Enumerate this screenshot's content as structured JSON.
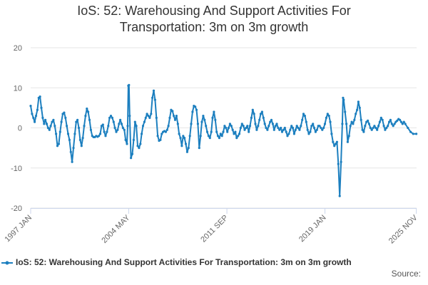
{
  "chart_data": {
    "type": "line",
    "title_line1": "IoS: 52: Warehousing And Support Activities For",
    "title_line2": "Transportation: 3m on 3m growth",
    "series_name": "IoS: 52: Warehousing And Support Activities For Transportation: 3m on 3m growth",
    "color": "#1c7fbf",
    "ylim": [
      -20,
      20
    ],
    "yticks": [
      20,
      10,
      0,
      -10,
      -20
    ],
    "xlim": [
      1997.0,
      2025.85
    ],
    "xticks": [
      {
        "label": "1997 JAN",
        "x": 1997.0
      },
      {
        "label": "2004 MAY",
        "x": 2004.33
      },
      {
        "label": "2011 SEP",
        "x": 2011.67
      },
      {
        "label": "2019 JAN",
        "x": 2019.0
      },
      {
        "label": "2025 NOV",
        "x": 2025.83
      }
    ],
    "grid": true,
    "legend_position": "bottom",
    "source_label": "Source:",
    "points": [
      [
        1997.0,
        5.5
      ],
      [
        1997.1,
        3.5
      ],
      [
        1997.2,
        2.5
      ],
      [
        1997.3,
        1.5
      ],
      [
        1997.4,
        3.0
      ],
      [
        1997.5,
        4.5
      ],
      [
        1997.6,
        7.5
      ],
      [
        1997.7,
        7.8
      ],
      [
        1997.8,
        5.0
      ],
      [
        1997.9,
        2.5
      ],
      [
        1998.0,
        1.0
      ],
      [
        1998.1,
        2.0
      ],
      [
        1998.2,
        1.0
      ],
      [
        1998.3,
        0.0
      ],
      [
        1998.4,
        -0.5
      ],
      [
        1998.5,
        0.5
      ],
      [
        1998.6,
        1.5
      ],
      [
        1998.7,
        2.0
      ],
      [
        1998.8,
        0.5
      ],
      [
        1998.9,
        -1.5
      ],
      [
        1999.0,
        -4.5
      ],
      [
        1999.1,
        -4.0
      ],
      [
        1999.2,
        -1.0
      ],
      [
        1999.3,
        1.5
      ],
      [
        1999.4,
        3.5
      ],
      [
        1999.5,
        3.8
      ],
      [
        1999.6,
        2.5
      ],
      [
        1999.7,
        0.5
      ],
      [
        1999.8,
        -1.5
      ],
      [
        1999.9,
        -3.0
      ],
      [
        2000.0,
        -6.0
      ],
      [
        2000.1,
        -8.5
      ],
      [
        2000.2,
        -5.0
      ],
      [
        2000.3,
        -1.5
      ],
      [
        2000.4,
        1.5
      ],
      [
        2000.5,
        2.0
      ],
      [
        2000.6,
        0.0
      ],
      [
        2000.7,
        -3.0
      ],
      [
        2000.8,
        -4.5
      ],
      [
        2000.9,
        -2.5
      ],
      [
        2001.0,
        0.5
      ],
      [
        2001.1,
        3.0
      ],
      [
        2001.2,
        4.8
      ],
      [
        2001.3,
        4.0
      ],
      [
        2001.4,
        2.0
      ],
      [
        2001.5,
        -0.5
      ],
      [
        2001.6,
        -2.0
      ],
      [
        2001.7,
        -2.3
      ],
      [
        2001.8,
        -2.3
      ],
      [
        2001.9,
        -2.0
      ],
      [
        2002.0,
        -2.2
      ],
      [
        2002.1,
        -2.0
      ],
      [
        2002.2,
        -1.5
      ],
      [
        2002.3,
        0.5
      ],
      [
        2002.4,
        0.8
      ],
      [
        2002.5,
        -1.0
      ],
      [
        2002.6,
        -2.0
      ],
      [
        2002.7,
        -1.0
      ],
      [
        2002.8,
        0.5
      ],
      [
        2002.9,
        2.5
      ],
      [
        2003.0,
        3.0
      ],
      [
        2003.1,
        2.5
      ],
      [
        2003.2,
        1.5
      ],
      [
        2003.3,
        0.0
      ],
      [
        2003.4,
        -1.0
      ],
      [
        2003.5,
        -0.5
      ],
      [
        2003.6,
        1.0
      ],
      [
        2003.7,
        2.0
      ],
      [
        2003.8,
        1.0
      ],
      [
        2003.9,
        0.0
      ],
      [
        2004.0,
        -0.5
      ],
      [
        2004.1,
        -3.0
      ],
      [
        2004.2,
        -4.0
      ],
      [
        2004.25,
        0.5
      ],
      [
        2004.3,
        10.5
      ],
      [
        2004.35,
        10.7
      ],
      [
        2004.4,
        3.0
      ],
      [
        2004.5,
        -7.5
      ],
      [
        2004.6,
        -6.5
      ],
      [
        2004.7,
        -3.0
      ],
      [
        2004.8,
        1.5
      ],
      [
        2004.9,
        0.5
      ],
      [
        2005.0,
        -4.5
      ],
      [
        2005.1,
        -5.0
      ],
      [
        2005.2,
        -4.0
      ],
      [
        2005.3,
        -1.5
      ],
      [
        2005.4,
        0.5
      ],
      [
        2005.5,
        1.5
      ],
      [
        2005.6,
        2.5
      ],
      [
        2005.7,
        3.5
      ],
      [
        2005.8,
        3.0
      ],
      [
        2005.9,
        2.5
      ],
      [
        2006.0,
        3.5
      ],
      [
        2006.1,
        7.5
      ],
      [
        2006.2,
        9.3
      ],
      [
        2006.3,
        7.0
      ],
      [
        2006.4,
        2.5
      ],
      [
        2006.5,
        -2.0
      ],
      [
        2006.6,
        -3.2
      ],
      [
        2006.7,
        -3.0
      ],
      [
        2006.8,
        -1.5
      ],
      [
        2006.9,
        -1.0
      ],
      [
        2007.0,
        -0.8
      ],
      [
        2007.1,
        -1.0
      ],
      [
        2007.2,
        -0.5
      ],
      [
        2007.3,
        0.5
      ],
      [
        2007.4,
        2.5
      ],
      [
        2007.5,
        4.5
      ],
      [
        2007.6,
        4.2
      ],
      [
        2007.7,
        3.0
      ],
      [
        2007.8,
        2.0
      ],
      [
        2007.9,
        3.0
      ],
      [
        2008.0,
        1.0
      ],
      [
        2008.1,
        -1.5
      ],
      [
        2008.2,
        -2.5
      ],
      [
        2008.3,
        -4.5
      ],
      [
        2008.4,
        -2.0
      ],
      [
        2008.5,
        -2.5
      ],
      [
        2008.6,
        -4.0
      ],
      [
        2008.7,
        -6.0
      ],
      [
        2008.8,
        -5.0
      ],
      [
        2008.9,
        -2.0
      ],
      [
        2009.0,
        1.0
      ],
      [
        2009.1,
        4.0
      ],
      [
        2009.2,
        5.5
      ],
      [
        2009.3,
        5.3
      ],
      [
        2009.4,
        4.5
      ],
      [
        2009.5,
        1.0
      ],
      [
        2009.6,
        -5.0
      ],
      [
        2009.7,
        -2.0
      ],
      [
        2009.8,
        1.5
      ],
      [
        2009.9,
        3.0
      ],
      [
        2010.0,
        2.0
      ],
      [
        2010.1,
        0.5
      ],
      [
        2010.2,
        -1.0
      ],
      [
        2010.3,
        -2.0
      ],
      [
        2010.4,
        -2.5
      ],
      [
        2010.5,
        -1.0
      ],
      [
        2010.6,
        2.5
      ],
      [
        2010.7,
        4.0
      ],
      [
        2010.8,
        2.0
      ],
      [
        2010.9,
        -1.0
      ],
      [
        2011.0,
        -2.0
      ],
      [
        2011.1,
        -2.5
      ],
      [
        2011.2,
        -1.5
      ],
      [
        2011.3,
        -2.0
      ],
      [
        2011.4,
        -1.0
      ],
      [
        2011.5,
        0.5
      ],
      [
        2011.6,
        0.0
      ],
      [
        2011.7,
        -1.0
      ],
      [
        2011.8,
        0.0
      ],
      [
        2011.9,
        1.0
      ],
      [
        2012.0,
        0.5
      ],
      [
        2012.1,
        -0.5
      ],
      [
        2012.2,
        -1.5
      ],
      [
        2012.3,
        -1.0
      ],
      [
        2012.4,
        -2.5
      ],
      [
        2012.5,
        -2.0
      ],
      [
        2012.6,
        -1.5
      ],
      [
        2012.7,
        0.0
      ],
      [
        2012.8,
        1.0
      ],
      [
        2012.9,
        0.5
      ],
      [
        2013.0,
        -0.5
      ],
      [
        2013.1,
        0.0
      ],
      [
        2013.2,
        0.5
      ],
      [
        2013.3,
        -1.0
      ],
      [
        2013.4,
        0.5
      ],
      [
        2013.5,
        2.5
      ],
      [
        2013.6,
        4.5
      ],
      [
        2013.7,
        3.5
      ],
      [
        2013.8,
        1.0
      ],
      [
        2013.9,
        -0.5
      ],
      [
        2014.0,
        0.5
      ],
      [
        2014.1,
        2.0
      ],
      [
        2014.2,
        3.5
      ],
      [
        2014.3,
        4.0
      ],
      [
        2014.4,
        2.5
      ],
      [
        2014.5,
        1.0
      ],
      [
        2014.6,
        0.0
      ],
      [
        2014.7,
        -0.5
      ],
      [
        2014.8,
        0.5
      ],
      [
        2014.9,
        1.5
      ],
      [
        2015.0,
        2.0
      ],
      [
        2015.1,
        1.0
      ],
      [
        2015.2,
        -0.5
      ],
      [
        2015.3,
        0.5
      ],
      [
        2015.4,
        1.0
      ],
      [
        2015.5,
        0.0
      ],
      [
        2015.6,
        -0.5
      ],
      [
        2015.7,
        0.0
      ],
      [
        2015.8,
        -1.0
      ],
      [
        2015.9,
        -0.5
      ],
      [
        2016.0,
        0.0
      ],
      [
        2016.1,
        -1.0
      ],
      [
        2016.2,
        -2.0
      ],
      [
        2016.3,
        -1.5
      ],
      [
        2016.4,
        -0.5
      ],
      [
        2016.5,
        0.5
      ],
      [
        2016.6,
        0.0
      ],
      [
        2016.7,
        -1.5
      ],
      [
        2016.8,
        -0.5
      ],
      [
        2016.9,
        0.5
      ],
      [
        2017.0,
        0.0
      ],
      [
        2017.1,
        -0.5
      ],
      [
        2017.2,
        0.5
      ],
      [
        2017.3,
        2.0
      ],
      [
        2017.4,
        3.5
      ],
      [
        2017.5,
        3.0
      ],
      [
        2017.6,
        1.5
      ],
      [
        2017.7,
        -0.5
      ],
      [
        2017.8,
        -1.5
      ],
      [
        2017.9,
        -1.0
      ],
      [
        2018.0,
        0.5
      ],
      [
        2018.1,
        1.0
      ],
      [
        2018.2,
        0.0
      ],
      [
        2018.3,
        -1.0
      ],
      [
        2018.4,
        -0.5
      ],
      [
        2018.5,
        0.5
      ],
      [
        2018.6,
        0.5
      ],
      [
        2018.7,
        0.0
      ],
      [
        2018.8,
        -0.5
      ],
      [
        2018.9,
        0.0
      ],
      [
        2019.0,
        1.0
      ],
      [
        2019.1,
        2.5
      ],
      [
        2019.2,
        3.5
      ],
      [
        2019.3,
        3.0
      ],
      [
        2019.4,
        1.5
      ],
      [
        2019.5,
        -1.5
      ],
      [
        2019.6,
        -3.5
      ],
      [
        2019.7,
        -4.5
      ],
      [
        2019.8,
        -4.0
      ],
      [
        2019.9,
        -3.5
      ],
      [
        2020.0,
        -9.0
      ],
      [
        2020.1,
        -17.0
      ],
      [
        2020.2,
        -8.5
      ],
      [
        2020.3,
        1.0
      ],
      [
        2020.35,
        7.5
      ],
      [
        2020.4,
        7.0
      ],
      [
        2020.5,
        4.0
      ],
      [
        2020.6,
        1.0
      ],
      [
        2020.7,
        -3.5
      ],
      [
        2020.8,
        -2.0
      ],
      [
        2020.9,
        0.5
      ],
      [
        2021.0,
        1.5
      ],
      [
        2021.1,
        1.0
      ],
      [
        2021.2,
        2.0
      ],
      [
        2021.3,
        3.5
      ],
      [
        2021.4,
        4.5
      ],
      [
        2021.5,
        6.5
      ],
      [
        2021.6,
        5.0
      ],
      [
        2021.7,
        2.0
      ],
      [
        2021.8,
        -0.5
      ],
      [
        2021.9,
        -1.0
      ],
      [
        2022.0,
        0.5
      ],
      [
        2022.1,
        1.5
      ],
      [
        2022.2,
        1.8
      ],
      [
        2022.3,
        1.0
      ],
      [
        2022.4,
        0.0
      ],
      [
        2022.5,
        -0.5
      ],
      [
        2022.6,
        0.0
      ],
      [
        2022.7,
        0.5
      ],
      [
        2022.8,
        0.0
      ],
      [
        2022.9,
        -0.5
      ],
      [
        2023.0,
        0.5
      ],
      [
        2023.1,
        1.5
      ],
      [
        2023.2,
        2.5
      ],
      [
        2023.3,
        2.0
      ],
      [
        2023.4,
        0.5
      ],
      [
        2023.5,
        -0.5
      ],
      [
        2023.6,
        0.0
      ],
      [
        2023.7,
        0.5
      ],
      [
        2023.8,
        1.5
      ],
      [
        2023.9,
        2.0
      ],
      [
        2024.0,
        1.0
      ],
      [
        2024.1,
        0.5
      ],
      [
        2024.2,
        1.0
      ],
      [
        2024.3,
        1.5
      ],
      [
        2024.4,
        1.8
      ],
      [
        2024.5,
        2.2
      ],
      [
        2024.6,
        2.0
      ],
      [
        2024.7,
        1.5
      ],
      [
        2024.8,
        1.0
      ],
      [
        2024.9,
        1.5
      ],
      [
        2025.0,
        1.0
      ],
      [
        2025.2,
        0.0
      ],
      [
        2025.4,
        -1.0
      ],
      [
        2025.6,
        -1.5
      ],
      [
        2025.83,
        -1.5
      ]
    ]
  }
}
